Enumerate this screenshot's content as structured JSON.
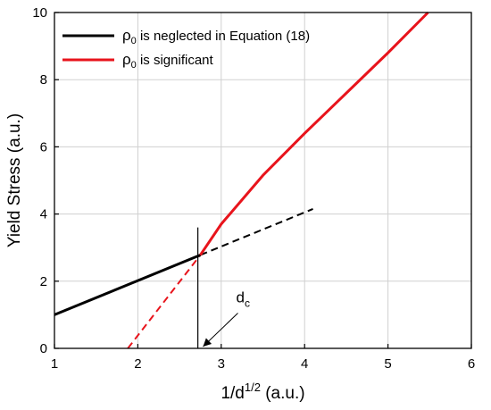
{
  "chart_data": {
    "type": "line",
    "title": "",
    "xlabel": {
      "base": "1/d",
      "sup": "1/2",
      "unit": " (a.u.)"
    },
    "ylabel": "Yield Stress (a.u.)",
    "xlim": [
      1,
      6
    ],
    "ylim": [
      0,
      10
    ],
    "xticks": [
      1,
      2,
      3,
      4,
      5,
      6
    ],
    "yticks": [
      0,
      2,
      4,
      6,
      8,
      10
    ],
    "grid": true,
    "legend_position": "top-left",
    "series": [
      {
        "legend_symbol": "ρ",
        "legend_sub": "0",
        "legend_text": "  is neglected in Equation (18)",
        "color": "#000000",
        "style": "solid",
        "x": [
          1.0,
          2.75
        ],
        "y": [
          1.0,
          2.78
        ]
      },
      {
        "legend_symbol": "ρ",
        "legend_sub": "0",
        "legend_text": "  is significant",
        "color": "#e8141c",
        "style": "solid",
        "x": [
          2.75,
          3.0,
          3.5,
          4.0,
          4.5,
          5.0,
          5.48
        ],
        "y": [
          2.78,
          3.7,
          5.15,
          6.4,
          7.6,
          8.8,
          10.0
        ]
      }
    ],
    "extrapolations": [
      {
        "color": "#000000",
        "style": "dashed",
        "x": [
          2.75,
          4.1
        ],
        "y": [
          2.78,
          4.15
        ]
      },
      {
        "color": "#e8141c",
        "style": "dashed",
        "x": [
          1.88,
          2.75
        ],
        "y": [
          0.0,
          2.78
        ]
      }
    ],
    "marker_line": {
      "x": 2.72,
      "y": [
        0.0,
        3.6
      ]
    },
    "annotation": {
      "text": "d",
      "sub": "c",
      "x_start": 3.2,
      "y_start": 1.05,
      "x_end": 2.75,
      "y_end": 0.0
    }
  }
}
